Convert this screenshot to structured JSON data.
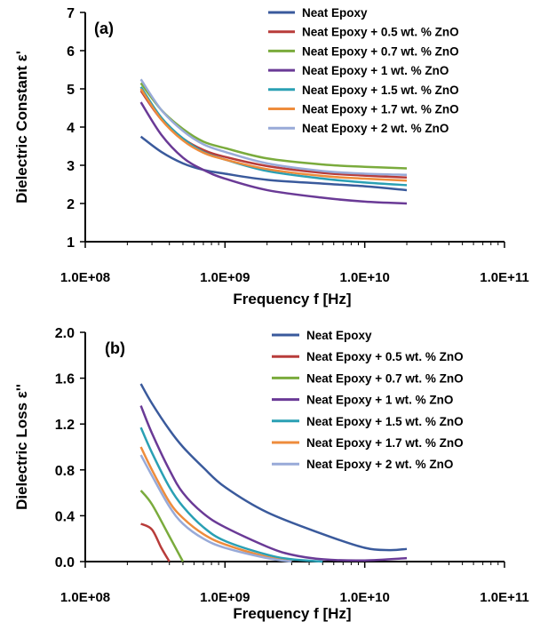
{
  "chart_data": [
    {
      "type": "line",
      "panel_label": "(a)",
      "xlabel": "Frequency f [Hz]",
      "ylabel": "Dielectric Constant ε'",
      "x_scale": "log",
      "xlim": [
        100000000,
        100000000000
      ],
      "x_ticks": [
        100000000,
        1000000000,
        10000000000,
        100000000000
      ],
      "x_tick_labels": [
        "1.0E+08",
        "1.0E+09",
        "1.0E+10",
        "1.0E+11"
      ],
      "ylim": [
        1,
        7
      ],
      "y_ticks": [
        1,
        2,
        3,
        4,
        5,
        6,
        7
      ],
      "y_tick_labels": [
        "1",
        "2",
        "3",
        "4",
        "5",
        "6",
        "7"
      ],
      "grid": false,
      "legend_position": "top-right",
      "series": [
        {
          "name": "Neat Epoxy",
          "color": "#3a5a9c",
          "x": [
            250000000,
            350000000,
            500000000,
            700000000,
            1000000000,
            2000000000,
            5000000000,
            10000000000,
            20000000000
          ],
          "y": [
            3.75,
            3.35,
            3.05,
            2.88,
            2.78,
            2.62,
            2.52,
            2.45,
            2.35
          ]
        },
        {
          "name": "Neat Epoxy  + 0.5 wt. % ZnO",
          "color": "#b83c3a",
          "x": [
            250000000,
            350000000,
            500000000,
            700000000,
            1000000000,
            2000000000,
            5000000000,
            10000000000,
            20000000000
          ],
          "y": [
            4.95,
            4.2,
            3.7,
            3.4,
            3.22,
            2.98,
            2.8,
            2.73,
            2.68
          ]
        },
        {
          "name": "Neat Epoxy  + 0.7 wt. % ZnO",
          "color": "#7aab3c",
          "x": [
            250000000,
            350000000,
            500000000,
            700000000,
            1000000000,
            2000000000,
            5000000000,
            10000000000,
            20000000000
          ],
          "y": [
            5.15,
            4.45,
            3.95,
            3.62,
            3.45,
            3.18,
            3.02,
            2.96,
            2.92
          ]
        },
        {
          "name": "Neat Epoxy  + 1 wt. % ZnO",
          "color": "#6a3a96",
          "x": [
            250000000,
            350000000,
            500000000,
            700000000,
            1000000000,
            2000000000,
            5000000000,
            10000000000,
            20000000000
          ],
          "y": [
            4.65,
            3.8,
            3.2,
            2.88,
            2.65,
            2.35,
            2.15,
            2.05,
            2.0
          ]
        },
        {
          "name": "Neat Epoxy  + 1.5 wt. % ZnO",
          "color": "#2aa0b4",
          "x": [
            250000000,
            350000000,
            500000000,
            700000000,
            1000000000,
            2000000000,
            5000000000,
            10000000000,
            20000000000
          ],
          "y": [
            5.05,
            4.25,
            3.7,
            3.35,
            3.15,
            2.85,
            2.65,
            2.55,
            2.48
          ]
        },
        {
          "name": "Neat Epoxy  + 1.7 wt. % ZnO",
          "color": "#ee8c3c",
          "x": [
            250000000,
            350000000,
            500000000,
            700000000,
            1000000000,
            2000000000,
            5000000000,
            10000000000,
            20000000000
          ],
          "y": [
            5.0,
            4.2,
            3.65,
            3.33,
            3.15,
            2.9,
            2.72,
            2.65,
            2.6
          ]
        },
        {
          "name": "Neat Epoxy  + 2 wt. % ZnO",
          "color": "#98aad8",
          "x": [
            250000000,
            350000000,
            500000000,
            700000000,
            1000000000,
            2000000000,
            5000000000,
            10000000000,
            20000000000
          ],
          "y": [
            5.25,
            4.45,
            3.9,
            3.55,
            3.35,
            3.05,
            2.85,
            2.78,
            2.75
          ]
        }
      ]
    },
    {
      "type": "line",
      "panel_label": "(b)",
      "xlabel": "Frequency f [Hz]",
      "ylabel": "Dielectric Loss ε''",
      "x_scale": "log",
      "xlim": [
        100000000,
        100000000000
      ],
      "x_ticks": [
        100000000,
        1000000000,
        10000000000,
        100000000000
      ],
      "x_tick_labels": [
        "1.0E+08",
        "1.0E+09",
        "1.0E+10",
        "1.0E+11"
      ],
      "ylim": [
        0,
        2
      ],
      "y_ticks": [
        0,
        0.4,
        0.8,
        1.2,
        1.6,
        2.0
      ],
      "y_tick_labels": [
        "0.0",
        "0.4",
        "0.8",
        "1.2",
        "1.6",
        "2.0"
      ],
      "grid": false,
      "legend_position": "top-right",
      "series": [
        {
          "name": "Neat Epoxy",
          "color": "#3a5a9c",
          "x": [
            250000000,
            300000000,
            400000000,
            500000000,
            700000000,
            1000000000,
            2000000000,
            5000000000,
            10000000000,
            15000000000,
            20000000000
          ],
          "y": [
            1.55,
            1.38,
            1.15,
            1.0,
            0.82,
            0.65,
            0.43,
            0.24,
            0.12,
            0.1,
            0.11
          ]
        },
        {
          "name": "Neat Epoxy  + 0.5 wt. % ZnO",
          "color": "#b83c3a",
          "x": [
            250000000,
            300000000,
            350000000,
            400000000
          ],
          "y": [
            0.33,
            0.28,
            0.12,
            0.0
          ]
        },
        {
          "name": "Neat Epoxy  + 0.7 wt. % ZnO",
          "color": "#7aab3c",
          "x": [
            250000000,
            300000000,
            400000000,
            500000000
          ],
          "y": [
            0.62,
            0.5,
            0.22,
            0.0
          ]
        },
        {
          "name": "Neat Epoxy  + 1 wt. % ZnO",
          "color": "#6a3a96",
          "x": [
            250000000,
            300000000,
            400000000,
            500000000,
            700000000,
            1000000000,
            2000000000,
            3000000000,
            5000000000,
            10000000000,
            20000000000
          ],
          "y": [
            1.36,
            1.12,
            0.8,
            0.6,
            0.42,
            0.3,
            0.13,
            0.06,
            0.02,
            0.01,
            0.03
          ]
        },
        {
          "name": "Neat Epoxy  + 1.5 wt. % ZnO",
          "color": "#2aa0b4",
          "x": [
            250000000,
            300000000,
            400000000,
            500000000,
            700000000,
            1000000000,
            2000000000,
            3000000000,
            5000000000
          ],
          "y": [
            1.17,
            0.95,
            0.65,
            0.48,
            0.3,
            0.18,
            0.06,
            0.02,
            0.0
          ]
        },
        {
          "name": "Neat Epoxy  + 1.7 wt. % ZnO",
          "color": "#ee8c3c",
          "x": [
            250000000,
            300000000,
            400000000,
            500000000,
            700000000,
            1000000000,
            2000000000,
            3000000000
          ],
          "y": [
            1.0,
            0.8,
            0.52,
            0.38,
            0.24,
            0.15,
            0.04,
            0.0
          ]
        },
        {
          "name": "Neat Epoxy  + 2 wt. % ZnO",
          "color": "#98aad8",
          "x": [
            250000000,
            300000000,
            400000000,
            500000000,
            700000000,
            1000000000,
            2000000000,
            3000000000
          ],
          "y": [
            0.93,
            0.75,
            0.48,
            0.33,
            0.2,
            0.12,
            0.03,
            0.0
          ]
        }
      ]
    }
  ]
}
